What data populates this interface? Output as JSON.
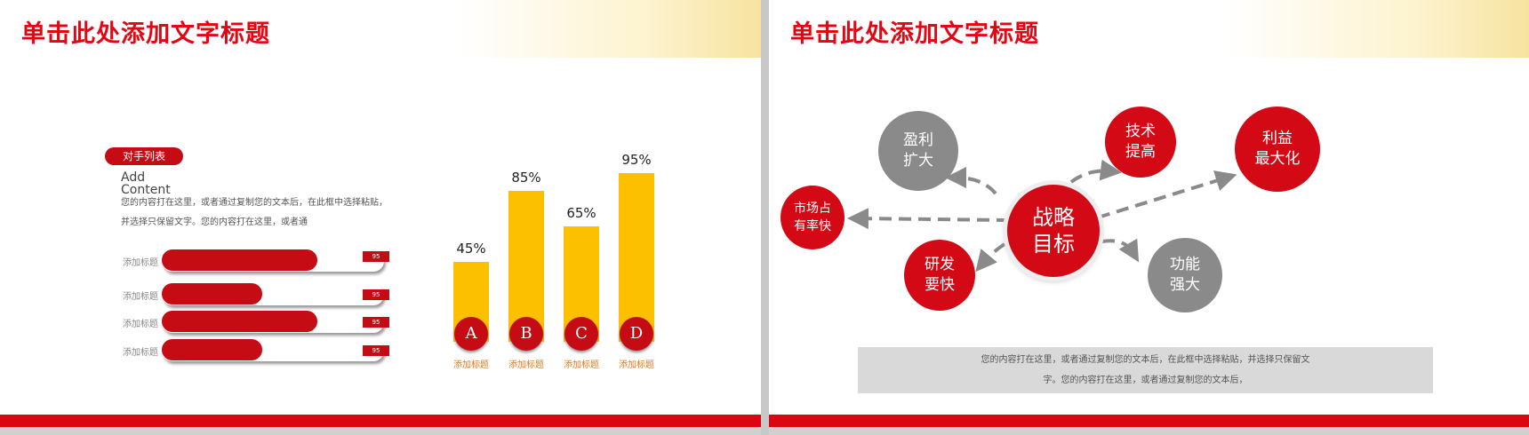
{
  "slides": [
    {
      "title": "单击此处添加文字标题",
      "pill": "对手列表",
      "add_content": "Add Content",
      "description": "您的内容打在这里，或者通过复制您的文本后，在此框中选择粘贴，并选择只保留文字。您的内容打在这里，或者通",
      "hbars": [
        {
          "label": "添加标题",
          "tag": "95",
          "fill": 0.7
        },
        {
          "label": "添加标题",
          "tag": "95",
          "fill": 0.45
        },
        {
          "label": "添加标题",
          "tag": "95",
          "fill": 0.7
        },
        {
          "label": "添加标题",
          "tag": "95",
          "fill": 0.45
        }
      ],
      "chart_data": {
        "type": "bar",
        "categories": [
          "A",
          "B",
          "C",
          "D"
        ],
        "values": [
          45,
          85,
          65,
          95
        ],
        "value_labels": [
          "45%",
          "85%",
          "65%",
          "95%"
        ],
        "category_titles": [
          "添加标题",
          "添加标题",
          "添加标题",
          "添加标题"
        ],
        "ylim": [
          0,
          100
        ],
        "bar_color": "#fcc000"
      }
    },
    {
      "title": "单击此处添加文字标题",
      "center": "战略\n目标",
      "nodes": [
        "盈利\n扩大",
        "技术\n提高",
        "利益\n最大化",
        "市场占\n有率快",
        "研发\n要快",
        "功能\n强大"
      ],
      "text_line1": "您的内容打在这里，或者通过复制您的文本后，在此框中选择粘贴，并选择只保留文",
      "text_line2": "字。您的内容打在这里，或者通过复制您的文本后，"
    }
  ],
  "colors": {
    "accent": "#e30613",
    "red": "#d30a16",
    "gray": "#8a8a8a",
    "yellow": "#fcc000"
  }
}
